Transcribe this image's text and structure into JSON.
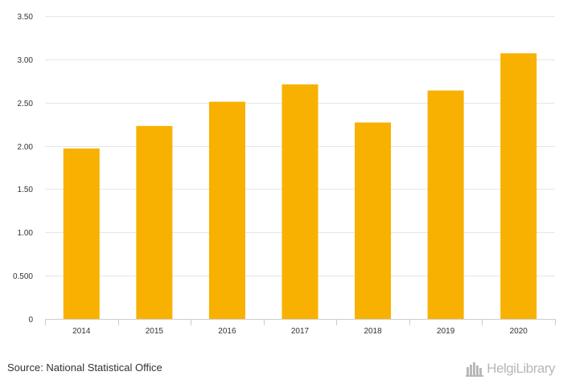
{
  "chart_data": {
    "type": "bar",
    "categories": [
      "2014",
      "2015",
      "2016",
      "2017",
      "2018",
      "2019",
      "2020"
    ],
    "values": [
      1.97,
      2.23,
      2.51,
      2.71,
      2.27,
      2.64,
      3.07
    ],
    "ylim": [
      0,
      3.5
    ],
    "yticks": [
      "0",
      "0.500",
      "1.00",
      "1.50",
      "2.00",
      "2.50",
      "3.00",
      "3.50"
    ],
    "grid": true,
    "bar_color": "#f8b100"
  },
  "footer": {
    "source": "Source: National Statistical Office",
    "brand": "HelgiLibrary"
  }
}
